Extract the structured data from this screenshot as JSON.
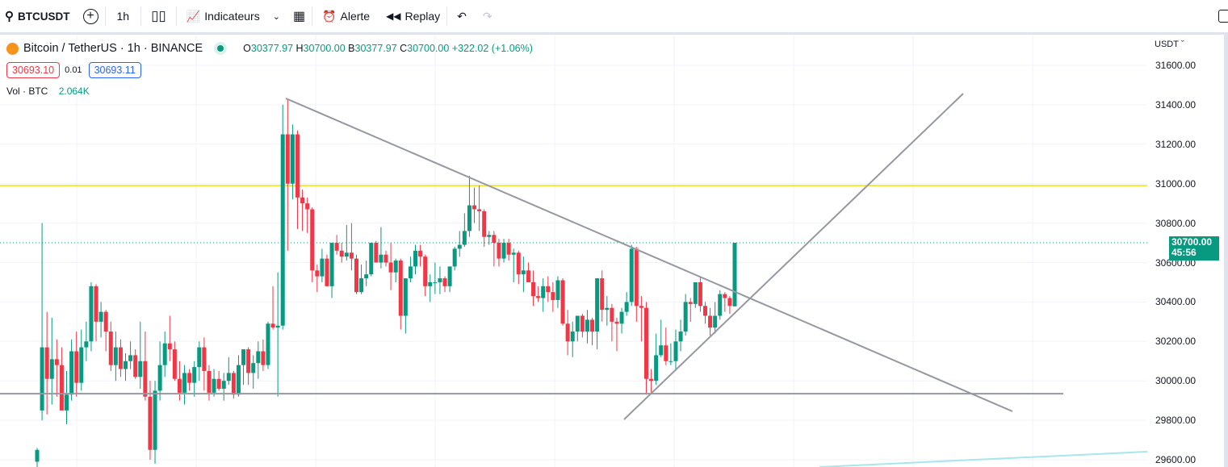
{
  "toolbar": {
    "symbol": "BTCUSDT",
    "interval": "1h",
    "indicators": "Indicateurs",
    "alert": "Alerte",
    "replay": "Replay"
  },
  "legend": {
    "title": "Bitcoin / TetherUS · 1h · BINANCE",
    "o_label": "O",
    "o": "30377.97",
    "h_label": "H",
    "h": "30700.00",
    "l_label": "B",
    "l": "30377.97",
    "c_label": "C",
    "c": "30700.00",
    "change": "+322.02 (+1.06%)",
    "bid": "30693.10",
    "spread": "0.01",
    "ask": "30693.11",
    "vol_label": "Vol · BTC",
    "vol": "2.064K"
  },
  "axis": {
    "currency": "USDT",
    "ticks": [
      "31600.00",
      "31400.00",
      "31200.00",
      "31000.00",
      "30800.00",
      "30600.00",
      "30400.00",
      "30200.00",
      "30000.00",
      "29800.00",
      "29600.00"
    ],
    "last_price": "30700.00",
    "countdown": "45:56"
  },
  "colors": {
    "up": "#089981",
    "down": "#f23645",
    "yellow_line": "#f5e83a",
    "trend": "#9598a1",
    "cyan": "#a6e6ec"
  },
  "chart_data": {
    "type": "candlestick",
    "ylim": [
      29600,
      31700
    ],
    "levels": {
      "resistance": 30990,
      "support": 29935,
      "last": 30700
    },
    "candles": [
      [
        29590,
        29660,
        29560,
        29650
      ],
      [
        29850,
        30800,
        29800,
        30170
      ],
      [
        30170,
        30350,
        29830,
        30010
      ],
      [
        30010,
        30320,
        29880,
        30110
      ],
      [
        30110,
        30210,
        29920,
        30080
      ],
      [
        30080,
        30170,
        29870,
        29850
      ],
      [
        29850,
        30050,
        29780,
        29930
      ],
      [
        29930,
        30210,
        29900,
        30150
      ],
      [
        30150,
        30250,
        29920,
        29990
      ],
      [
        29990,
        30260,
        29950,
        30170
      ],
      [
        30170,
        30300,
        30100,
        30200
      ],
      [
        30200,
        30500,
        30150,
        30480
      ],
      [
        30480,
        30490,
        30200,
        30300
      ],
      [
        30300,
        30400,
        30220,
        30350
      ],
      [
        30350,
        30360,
        30150,
        30250
      ],
      [
        30250,
        30300,
        30050,
        30080
      ],
      [
        30080,
        30250,
        30000,
        30170
      ],
      [
        30170,
        30210,
        30020,
        30060
      ],
      [
        30060,
        30140,
        30000,
        30100
      ],
      [
        30100,
        30200,
        30060,
        30130
      ],
      [
        30130,
        30160,
        30010,
        30020
      ],
      [
        30020,
        30300,
        29960,
        30100
      ],
      [
        30100,
        30250,
        29900,
        29920
      ],
      [
        29920,
        30000,
        29600,
        29650
      ],
      [
        29650,
        30000,
        29580,
        29950
      ],
      [
        29950,
        30200,
        29900,
        30080
      ],
      [
        30080,
        30250,
        30020,
        30190
      ],
      [
        30190,
        30330,
        30100,
        30160
      ],
      [
        30160,
        30200,
        30000,
        30010
      ],
      [
        30010,
        30100,
        29900,
        29940
      ],
      [
        29940,
        30080,
        29880,
        30040
      ],
      [
        30040,
        30060,
        29950,
        29990
      ],
      [
        29990,
        30100,
        29920,
        30070
      ],
      [
        30070,
        30200,
        30000,
        30170
      ],
      [
        30170,
        30220,
        29950,
        30050
      ],
      [
        30050,
        30080,
        29900,
        29940
      ],
      [
        29940,
        30060,
        29920,
        30010
      ],
      [
        30010,
        30050,
        29950,
        29960
      ],
      [
        29960,
        30040,
        29900,
        30000
      ],
      [
        30000,
        30120,
        29980,
        30040
      ],
      [
        30040,
        30050,
        29910,
        29930
      ],
      [
        29930,
        30130,
        29920,
        30080
      ],
      [
        30080,
        30150,
        29980,
        30160
      ],
      [
        30160,
        30170,
        29980,
        30040
      ],
      [
        30040,
        30130,
        29960,
        30090
      ],
      [
        30090,
        30200,
        30010,
        30150
      ],
      [
        30150,
        30210,
        30050,
        30080
      ],
      [
        30080,
        30300,
        30060,
        30290
      ],
      [
        30290,
        30480,
        30260,
        30270
      ],
      [
        30270,
        30550,
        29920,
        30280
      ],
      [
        30280,
        31400,
        30260,
        31250
      ],
      [
        31250,
        31430,
        30660,
        31000
      ],
      [
        31000,
        31300,
        30920,
        31250
      ],
      [
        31250,
        31270,
        30770,
        30930
      ],
      [
        30930,
        30970,
        30760,
        30900
      ],
      [
        30900,
        30930,
        30750,
        30870
      ],
      [
        30870,
        30880,
        30500,
        30560
      ],
      [
        30560,
        30590,
        30450,
        30530
      ],
      [
        30530,
        30670,
        30500,
        30620
      ],
      [
        30620,
        30640,
        30480,
        30480
      ],
      [
        30480,
        30700,
        30420,
        30700
      ],
      [
        30700,
        30740,
        30640,
        30660
      ],
      [
        30660,
        30700,
        30600,
        30630
      ],
      [
        30630,
        30790,
        30610,
        30650
      ],
      [
        30650,
        30800,
        30560,
        30620
      ],
      [
        30620,
        30640,
        30440,
        30450
      ],
      [
        30450,
        30590,
        30440,
        30520
      ],
      [
        30520,
        30610,
        30480,
        30540
      ],
      [
        30540,
        30700,
        30530,
        30700
      ],
      [
        30700,
        30710,
        30600,
        30600
      ],
      [
        30600,
        30780,
        30570,
        30640
      ],
      [
        30640,
        30660,
        30580,
        30600
      ],
      [
        30600,
        30700,
        30460,
        30550
      ],
      [
        30550,
        30620,
        30500,
        30610
      ],
      [
        30610,
        30620,
        30260,
        30330
      ],
      [
        30330,
        30520,
        30240,
        30520
      ],
      [
        30520,
        30630,
        30500,
        30580
      ],
      [
        30580,
        30690,
        30540,
        30660
      ],
      [
        30660,
        30690,
        30580,
        30630
      ],
      [
        30630,
        30640,
        30430,
        30480
      ],
      [
        30480,
        30540,
        30400,
        30500
      ],
      [
        30500,
        30600,
        30440,
        30500
      ],
      [
        30500,
        30580,
        30440,
        30520
      ],
      [
        30520,
        30530,
        30450,
        30480
      ],
      [
        30480,
        30580,
        30450,
        30580
      ],
      [
        30580,
        30680,
        30560,
        30670
      ],
      [
        30670,
        30760,
        30630,
        30690
      ],
      [
        30690,
        30850,
        30680,
        30760
      ],
      [
        30760,
        31040,
        30730,
        30890
      ],
      [
        30890,
        30980,
        30800,
        30870
      ],
      [
        30870,
        30990,
        30760,
        30860
      ],
      [
        30860,
        30870,
        30680,
        30730
      ],
      [
        30730,
        30760,
        30690,
        30740
      ],
      [
        30740,
        30760,
        30580,
        30700
      ],
      [
        30700,
        30720,
        30580,
        30620
      ],
      [
        30620,
        30720,
        30600,
        30700
      ],
      [
        30700,
        30720,
        30610,
        30640
      ],
      [
        30640,
        30670,
        30500,
        30650
      ],
      [
        30650,
        30660,
        30490,
        30540
      ],
      [
        30540,
        30630,
        30450,
        30560
      ],
      [
        30560,
        30600,
        30500,
        30500
      ],
      [
        30500,
        30560,
        30380,
        30430
      ],
      [
        30430,
        30480,
        30400,
        30420
      ],
      [
        30420,
        30520,
        30350,
        30480
      ],
      [
        30480,
        30530,
        30400,
        30450
      ],
      [
        30450,
        30500,
        30350,
        30410
      ],
      [
        30410,
        30530,
        30370,
        30510
      ],
      [
        30510,
        30520,
        30280,
        30290
      ],
      [
        30290,
        30360,
        30130,
        30200
      ],
      [
        30200,
        30300,
        30120,
        30250
      ],
      [
        30250,
        30330,
        30200,
        30330
      ],
      [
        30330,
        30340,
        30220,
        30250
      ],
      [
        30250,
        30360,
        30190,
        30310
      ],
      [
        30310,
        30320,
        30180,
        30250
      ],
      [
        30250,
        30520,
        30160,
        30520
      ],
      [
        30520,
        30560,
        30300,
        30360
      ],
      [
        30360,
        30430,
        30280,
        30370
      ],
      [
        30370,
        30390,
        30200,
        30300
      ],
      [
        30300,
        30320,
        30150,
        30290
      ],
      [
        30290,
        30370,
        30240,
        30350
      ],
      [
        30350,
        30450,
        30330,
        30400
      ],
      [
        30400,
        30690,
        30380,
        30670
      ],
      [
        30670,
        30680,
        30300,
        30380
      ],
      [
        30380,
        30430,
        30200,
        30370
      ],
      [
        30370,
        30400,
        29930,
        30010
      ],
      [
        30010,
        30060,
        29940,
        30000
      ],
      [
        30000,
        30240,
        29980,
        30130
      ],
      [
        30130,
        30310,
        30120,
        30180
      ],
      [
        30180,
        30270,
        30080,
        30100
      ],
      [
        30100,
        30190,
        30080,
        30100
      ],
      [
        30100,
        30260,
        30060,
        30200
      ],
      [
        30200,
        30310,
        30150,
        30250
      ],
      [
        30250,
        30440,
        30230,
        30400
      ],
      [
        30400,
        30420,
        30300,
        30390
      ],
      [
        30390,
        30500,
        30370,
        30500
      ],
      [
        30500,
        30530,
        30350,
        30380
      ],
      [
        30380,
        30400,
        30290,
        30330
      ],
      [
        30330,
        30370,
        30230,
        30270
      ],
      [
        30270,
        30400,
        30240,
        30330
      ],
      [
        30330,
        30460,
        30310,
        30440
      ],
      [
        30440,
        30450,
        30350,
        30420
      ],
      [
        30420,
        30430,
        30340,
        30380
      ],
      [
        30377.97,
        30700,
        30377.97,
        30700
      ]
    ]
  }
}
